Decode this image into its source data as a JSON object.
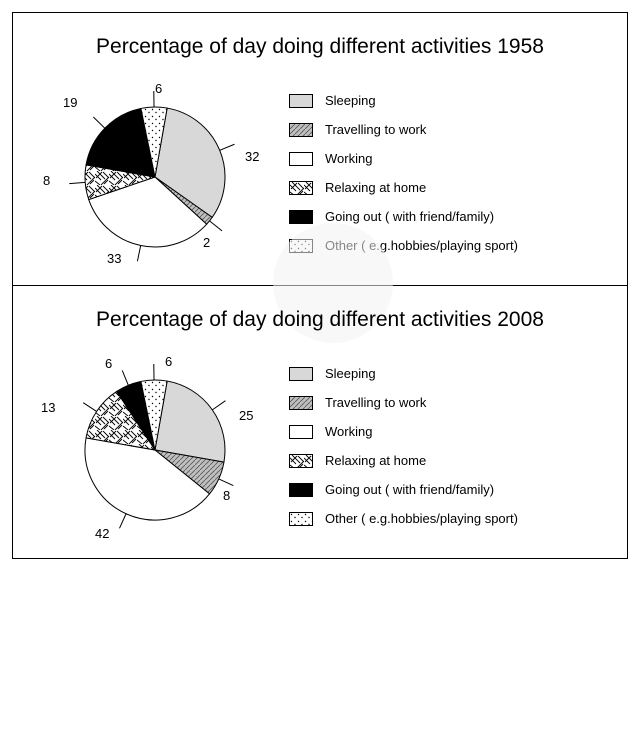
{
  "chart1": {
    "title": "Percentage of day doing different activities 1958",
    "type": "pie",
    "slices": [
      {
        "label": "Sleeping",
        "value": 32,
        "fill": "#d8d8d8",
        "pattern": "none"
      },
      {
        "label": "Travelling to work",
        "value": 2,
        "fill": "#bfbfbf",
        "pattern": "hatch"
      },
      {
        "label": "Working",
        "value": 33,
        "fill": "#ffffff",
        "pattern": "none"
      },
      {
        "label": "Relaxing at home",
        "value": 8,
        "fill": "#ffffff",
        "pattern": "scribble"
      },
      {
        "label": "Going out ( with friend/family)",
        "value": 19,
        "fill": "#000000",
        "pattern": "none"
      },
      {
        "label": "Other ( e.g. hobbies/playing sport)",
        "value": 6,
        "fill": "#ffffff",
        "pattern": "dots"
      }
    ],
    "stroke": "#000000",
    "stroke_width": 1,
    "legend_labels": [
      "Sleeping",
      "Travelling to work",
      "Working",
      "Relaxing at home",
      "Going out ( with friend/family)",
      "Other ( e.g.hobbies/playing sport)"
    ],
    "callouts": {
      "v32": "32",
      "v2": "2",
      "v33": "33",
      "v8": "8",
      "v19": "19",
      "v6": "6"
    }
  },
  "chart2": {
    "title": "Percentage of day doing different activities 2008",
    "type": "pie",
    "slices": [
      {
        "label": "Sleeping",
        "value": 25,
        "fill": "#d8d8d8",
        "pattern": "none"
      },
      {
        "label": "Travelling to work",
        "value": 8,
        "fill": "#bfbfbf",
        "pattern": "hatch"
      },
      {
        "label": "Working",
        "value": 42,
        "fill": "#ffffff",
        "pattern": "none"
      },
      {
        "label": "Relaxing at home",
        "value": 13,
        "fill": "#ffffff",
        "pattern": "scribble"
      },
      {
        "label": "Going out ( with friend/family)",
        "value": 6,
        "fill": "#000000",
        "pattern": "none"
      },
      {
        "label": "Other ( e.g. hobbies/playing sport)",
        "value": 6,
        "fill": "#ffffff",
        "pattern": "dots"
      }
    ],
    "stroke": "#000000",
    "stroke_width": 1,
    "legend_labels": [
      "Sleeping",
      "Travelling to work",
      "Working",
      "Relaxing at home",
      "Going out ( with friend/family)",
      "Other ( e.g.hobbies/playing sport)"
    ],
    "callouts": {
      "v25": "25",
      "v8": "8",
      "v42": "42",
      "v13": "13",
      "v6a": "6",
      "v6b": "6"
    }
  },
  "legend_swatches": [
    {
      "fill": "#d8d8d8",
      "pattern": "none"
    },
    {
      "fill": "#bfbfbf",
      "pattern": "hatch"
    },
    {
      "fill": "#ffffff",
      "pattern": "none"
    },
    {
      "fill": "#ffffff",
      "pattern": "scribble"
    },
    {
      "fill": "#000000",
      "pattern": "none"
    },
    {
      "fill": "#ffffff",
      "pattern": "dots"
    }
  ],
  "watermark_color": "#f0f0f0",
  "pie_radius": 70,
  "start_angle_deg": -80
}
